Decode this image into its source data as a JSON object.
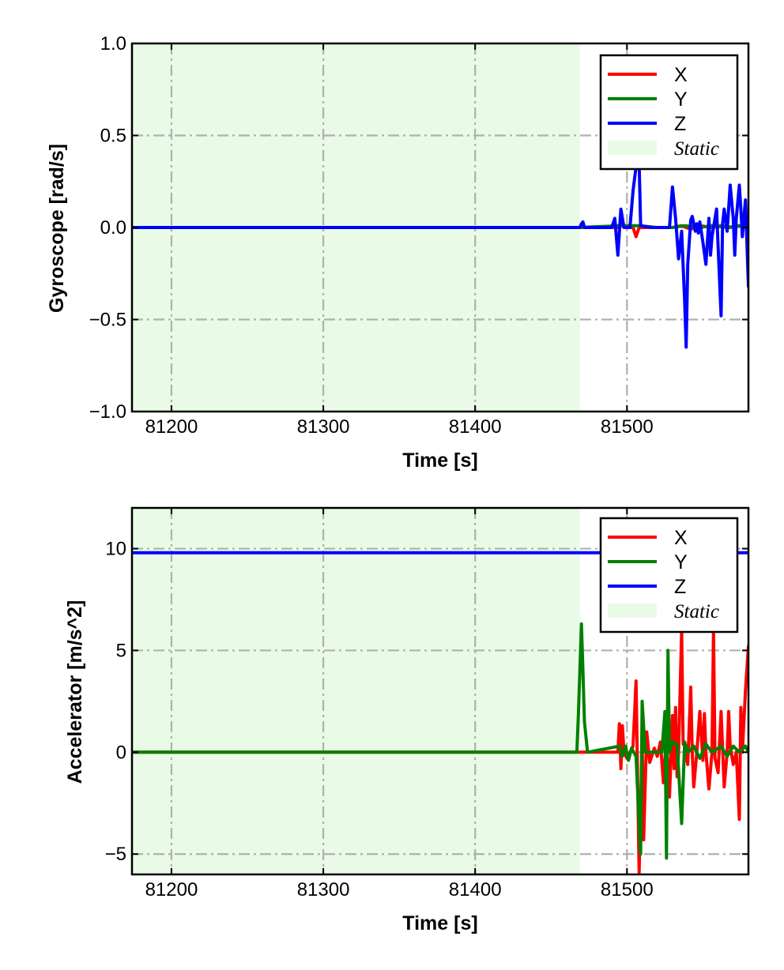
{
  "chart_data": [
    {
      "type": "line",
      "xlabel": "Time [s]",
      "ylabel": "Gyroscope [rad/s]",
      "xlim": [
        81174,
        81580
      ],
      "ylim": [
        -1.0,
        1.0
      ],
      "xticks": [
        81200,
        81300,
        81400,
        81500
      ],
      "xtick_labels": [
        "81200",
        "81300",
        "81400",
        "81500"
      ],
      "yticks": [
        -1.0,
        -0.5,
        0.0,
        0.5,
        1.0
      ],
      "ytick_labels": [
        "−1.0",
        "−0.5",
        "0.0",
        "0.5",
        "1.0"
      ],
      "grid": true,
      "legend_position": "top-right",
      "static_region": {
        "label": "Static",
        "x": [
          81174,
          81469
        ],
        "color": "#e9fbe6"
      },
      "series": [
        {
          "name": "X",
          "color": "#ff0000",
          "x": [
            81174,
            81469,
            81494,
            81496,
            81498,
            81504,
            81506,
            81508,
            81530,
            81536,
            81542,
            81548,
            81556,
            81562,
            81568,
            81574,
            81580
          ],
          "values": [
            0,
            0,
            0,
            0.02,
            0,
            0,
            -0.05,
            0,
            0,
            0.01,
            -0.01,
            0.01,
            0,
            0.01,
            0,
            0.01,
            0
          ]
        },
        {
          "name": "Y",
          "color": "#008000",
          "x": [
            81174,
            81469,
            81495,
            81508,
            81520,
            81530,
            81538,
            81548,
            81556,
            81566,
            81574,
            81580
          ],
          "values": [
            0,
            0,
            0.01,
            0.01,
            0,
            0,
            0.01,
            0,
            0.01,
            0,
            0.01,
            0
          ]
        },
        {
          "name": "Z",
          "color": "#0000ff",
          "x": [
            81174,
            81469,
            81470,
            81471,
            81472,
            81490,
            81492,
            81494,
            81496,
            81498,
            81502,
            81504,
            81506,
            81508,
            81509,
            81516,
            81528,
            81530,
            81532,
            81534,
            81536,
            81538,
            81539,
            81540,
            81542,
            81543,
            81545,
            81546,
            81547,
            81548,
            81550,
            81552,
            81554,
            81555,
            81556,
            81558,
            81559,
            81560,
            81562,
            81563,
            81564,
            81566,
            81568,
            81570,
            81571,
            81572,
            81574,
            81575,
            81576,
            81578,
            81580
          ],
          "values": [
            0,
            0,
            0.02,
            0.03,
            0,
            0,
            0.05,
            -0.15,
            0.1,
            0,
            0,
            0.2,
            0.33,
            0.35,
            0.01,
            0,
            0,
            0.22,
            0.05,
            -0.17,
            -0.02,
            -0.4,
            -0.65,
            -0.2,
            0.04,
            0.06,
            -0.02,
            0.02,
            -0.03,
            0.03,
            -0.08,
            -0.2,
            0.05,
            -0.15,
            -0.05,
            0.05,
            0.1,
            -0.1,
            -0.48,
            0.02,
            0.1,
            -0.02,
            0.23,
            0.05,
            -0.15,
            0.05,
            0.23,
            0.1,
            -0.05,
            0.15,
            -0.32
          ]
        }
      ]
    },
    {
      "type": "line",
      "xlabel": "Time [s]",
      "ylabel": "Accelerator [m/s^2]",
      "xlim": [
        81174,
        81580
      ],
      "ylim": [
        -6.0,
        12.0
      ],
      "xticks": [
        81200,
        81300,
        81400,
        81500
      ],
      "xtick_labels": [
        "81200",
        "81300",
        "81400",
        "81500"
      ],
      "yticks": [
        -5,
        0,
        5,
        10
      ],
      "ytick_labels": [
        "−5",
        "0",
        "5",
        "10"
      ],
      "grid": true,
      "legend_position": "top-right",
      "static_region": {
        "label": "Static",
        "x": [
          81174,
          81469
        ],
        "color": "#e9fbe6"
      },
      "series": [
        {
          "name": "X",
          "color": "#ff0000",
          "x": [
            81174,
            81469,
            81494,
            81495,
            81496,
            81497,
            81498,
            81500,
            81504,
            81506,
            81508,
            81510,
            81511,
            81513,
            81515,
            81518,
            81520,
            81522,
            81524,
            81526,
            81528,
            81530,
            81531,
            81532,
            81533,
            81534,
            81536,
            81537,
            81538,
            81540,
            81542,
            81543,
            81544,
            81546,
            81548,
            81550,
            81551,
            81552,
            81554,
            81556,
            81557,
            81558,
            81560,
            81562,
            81564,
            81566,
            81567,
            81568,
            81570,
            81572,
            81574,
            81575,
            81576,
            81578,
            81580
          ],
          "values": [
            0,
            0,
            0,
            1.4,
            -0.8,
            1.3,
            0,
            -0.3,
            0.3,
            3.5,
            -5.9,
            0.5,
            -4.3,
            1,
            -0.5,
            0.2,
            -0.2,
            0.5,
            -1.5,
            0.8,
            -2.2,
            1.8,
            -0.8,
            2.2,
            -1.2,
            0,
            6.0,
            0.4,
            0.3,
            -0.6,
            3.2,
            0,
            -1.7,
            0,
            2.0,
            -0.4,
            1.9,
            0,
            -1.8,
            0,
            6.0,
            -0.3,
            -1.0,
            2.0,
            -1.7,
            0,
            2.0,
            0.3,
            -0.6,
            0,
            -3.3,
            2.2,
            0,
            3.0,
            5.2
          ]
        },
        {
          "name": "Y",
          "color": "#008000",
          "x": [
            81174,
            81467,
            81468,
            81469,
            81470,
            81471,
            81472,
            81474,
            81495,
            81497,
            81499,
            81501,
            81503,
            81506,
            81508,
            81509,
            81510,
            81512,
            81518,
            81523,
            81525,
            81526,
            81527,
            81528,
            81530,
            81533,
            81536,
            81538,
            81540,
            81544,
            81548,
            81552,
            81556,
            81562,
            81566,
            81570,
            81574,
            81578,
            81580
          ],
          "values": [
            0,
            0,
            1.8,
            4,
            6.3,
            4,
            1.5,
            0,
            0.3,
            -0.2,
            0.3,
            -0.4,
            0.2,
            -0.2,
            -3.5,
            -5.0,
            2.5,
            0,
            0,
            0,
            2.0,
            -5.2,
            5.0,
            0,
            0.5,
            0.4,
            -3.5,
            0.5,
            0,
            0.3,
            -0.3,
            0.4,
            0,
            0.3,
            -0.2,
            0.3,
            0,
            0.3,
            0
          ]
        },
        {
          "name": "Z",
          "color": "#0000ff",
          "x": [
            81174,
            81580
          ],
          "values": [
            9.8,
            9.8
          ]
        }
      ]
    }
  ]
}
